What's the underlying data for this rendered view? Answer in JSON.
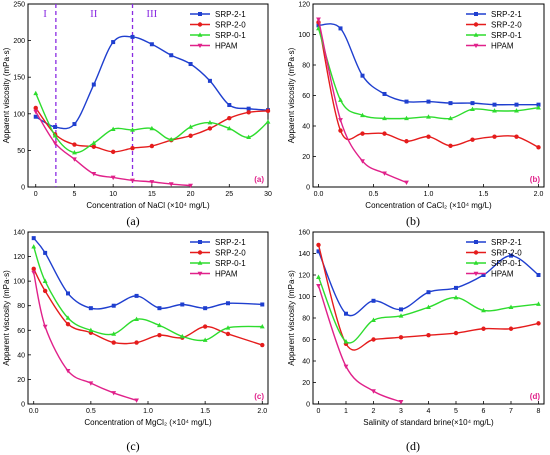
{
  "chart_data": [
    {
      "type": "line",
      "panel_tag": "(a)",
      "caption": "(a)",
      "xlabel": "Concentration of NaCl (×10⁴ mg/L)",
      "ylabel": "Apparent viscosity (mPa·s)",
      "xlim": [
        -1,
        30
      ],
      "ylim": [
        0,
        250
      ],
      "xticks": [
        0,
        5,
        10,
        15,
        20,
        25,
        30
      ],
      "yticks": [
        0,
        50,
        100,
        150,
        200,
        250
      ],
      "legend_position": "top-right",
      "grid": false,
      "region_lines": [
        2.6,
        12.5
      ],
      "regions": [
        {
          "label": "I",
          "x": 1.2
        },
        {
          "label": "II",
          "x": 7.5
        },
        {
          "label": "III",
          "x": 15
        }
      ],
      "series": [
        {
          "name": "SRP-2-1",
          "color": "#1f3fcf",
          "x": [
            0,
            2.5,
            5,
            7.5,
            10,
            12.5,
            15,
            17.5,
            20,
            22.5,
            25,
            27.5,
            30
          ],
          "y": [
            96,
            82,
            86,
            140,
            198,
            205,
            195,
            180,
            168,
            145,
            112,
            107,
            105
          ]
        },
        {
          "name": "SRP-2-0",
          "color": "#e51c1c",
          "x": [
            0,
            2.5,
            5,
            7.5,
            10,
            12.5,
            15,
            17.5,
            20,
            22.5,
            25,
            27.5,
            30
          ],
          "y": [
            108,
            72,
            58,
            55,
            48,
            53,
            56,
            64,
            70,
            80,
            94,
            102,
            104
          ]
        },
        {
          "name": "SRP-0-1",
          "color": "#2edc2e",
          "x": [
            0,
            2.5,
            5,
            7.5,
            10,
            12.5,
            15,
            17.5,
            20,
            22.5,
            25,
            27.5,
            30
          ],
          "y": [
            128,
            70,
            47,
            60,
            79,
            78,
            80,
            65,
            82,
            88,
            80,
            68,
            89
          ]
        },
        {
          "name": "HPAM",
          "color": "#e0218a",
          "x": [
            0,
            2.5,
            5,
            7.5,
            10,
            12.5,
            15,
            17.5,
            20
          ],
          "y": [
            103,
            60,
            38,
            18,
            13,
            9,
            7,
            4,
            2
          ]
        }
      ]
    },
    {
      "type": "line",
      "panel_tag": "(b)",
      "caption": "(b)",
      "xlabel": "Concentration of CaCl₂ (×10⁴ mg/L)",
      "ylabel": "Apparent viscosity (mPa·s)",
      "xlim": [
        -0.05,
        2.05
      ],
      "ylim": [
        0,
        120
      ],
      "xticks": [
        0.0,
        0.5,
        1.0,
        1.5,
        2.0
      ],
      "yticks": [
        0,
        20,
        40,
        60,
        80,
        100,
        120
      ],
      "legend_position": "top-right",
      "grid": false,
      "series": [
        {
          "name": "SRP-2-1",
          "color": "#1f3fcf",
          "x": [
            0,
            0.2,
            0.4,
            0.6,
            0.8,
            1.0,
            1.2,
            1.4,
            1.6,
            1.8,
            2.0
          ],
          "y": [
            106,
            104,
            73,
            61,
            56,
            56,
            55,
            55,
            54,
            54,
            54
          ]
        },
        {
          "name": "SRP-2-0",
          "color": "#e51c1c",
          "x": [
            0,
            0.2,
            0.4,
            0.6,
            0.8,
            1.0,
            1.2,
            1.4,
            1.6,
            1.8,
            2.0
          ],
          "y": [
            108,
            37,
            35,
            35,
            30,
            33,
            27,
            31,
            33,
            33,
            26
          ]
        },
        {
          "name": "SRP-0-1",
          "color": "#2edc2e",
          "x": [
            0,
            0.2,
            0.4,
            0.6,
            0.8,
            1.0,
            1.2,
            1.4,
            1.6,
            1.8,
            2.0
          ],
          "y": [
            104,
            57,
            47,
            45,
            45,
            46,
            45,
            51,
            50,
            50,
            52
          ]
        },
        {
          "name": "HPAM",
          "color": "#e0218a",
          "x": [
            0,
            0.2,
            0.4,
            0.6,
            0.8
          ],
          "y": [
            110,
            44,
            17,
            9,
            3
          ]
        }
      ]
    },
    {
      "type": "line",
      "panel_tag": "(c)",
      "caption": "(c)",
      "xlabel": "Concentration of MgCl₂ (×10⁴ mg/L)",
      "ylabel": "Apparent viscosity (mPa·s)",
      "xlim": [
        -0.05,
        2.05
      ],
      "ylim": [
        0,
        140
      ],
      "xticks": [
        0.0,
        0.5,
        1.0,
        1.5,
        2.0
      ],
      "yticks": [
        0,
        20,
        40,
        60,
        80,
        100,
        120,
        140
      ],
      "legend_position": "top-right",
      "grid": false,
      "series": [
        {
          "name": "SRP-2-1",
          "color": "#1f3fcf",
          "x": [
            0,
            0.1,
            0.3,
            0.5,
            0.7,
            0.9,
            1.1,
            1.3,
            1.5,
            1.7,
            2.0
          ],
          "y": [
            135,
            123,
            90,
            78,
            80,
            88,
            78,
            81,
            78,
            82,
            81
          ]
        },
        {
          "name": "SRP-2-0",
          "color": "#e51c1c",
          "x": [
            0,
            0.1,
            0.3,
            0.5,
            0.7,
            0.9,
            1.1,
            1.3,
            1.5,
            1.7,
            2.0
          ],
          "y": [
            110,
            92,
            65,
            58,
            50,
            50,
            56,
            54,
            63,
            57,
            48
          ]
        },
        {
          "name": "SRP-0-1",
          "color": "#2edc2e",
          "x": [
            0,
            0.1,
            0.3,
            0.5,
            0.7,
            0.9,
            1.1,
            1.3,
            1.5,
            1.7,
            2.0
          ],
          "y": [
            128,
            100,
            70,
            60,
            57,
            69,
            64,
            55,
            52,
            62,
            63
          ]
        },
        {
          "name": "HPAM",
          "color": "#e0218a",
          "x": [
            0,
            0.1,
            0.3,
            0.5,
            0.7,
            0.9
          ],
          "y": [
            107,
            63,
            27,
            17,
            9,
            3
          ]
        }
      ]
    },
    {
      "type": "line",
      "panel_tag": "(d)",
      "caption": "(d)",
      "xlabel": "Salinity of standard brine(×10⁴ mg/L)",
      "ylabel": "Apparent viscosity (mPa·s)",
      "xlim": [
        -0.2,
        8.2
      ],
      "ylim": [
        0,
        160
      ],
      "xticks": [
        0,
        1,
        2,
        3,
        4,
        5,
        6,
        7,
        8
      ],
      "yticks": [
        0,
        20,
        40,
        60,
        80,
        100,
        120,
        140,
        160
      ],
      "legend_position": "top-right",
      "grid": false,
      "series": [
        {
          "name": "SRP-2-1",
          "color": "#1f3fcf",
          "x": [
            0,
            1,
            2,
            3,
            4,
            5,
            6,
            7,
            8
          ],
          "y": [
            142,
            84,
            96,
            88,
            104,
            108,
            120,
            138,
            120
          ]
        },
        {
          "name": "SRP-2-0",
          "color": "#e51c1c",
          "x": [
            0,
            1,
            2,
            3,
            4,
            5,
            6,
            7,
            8
          ],
          "y": [
            148,
            56,
            60,
            62,
            64,
            66,
            70,
            70,
            75
          ]
        },
        {
          "name": "SRP-0-1",
          "color": "#2edc2e",
          "x": [
            0,
            1,
            2,
            3,
            4,
            5,
            6,
            7,
            8
          ],
          "y": [
            118,
            58,
            78,
            82,
            90,
            99,
            87,
            90,
            93
          ]
        },
        {
          "name": "HPAM",
          "color": "#e0218a",
          "x": [
            0,
            1,
            2,
            3
          ],
          "y": [
            110,
            35,
            12,
            2
          ]
        }
      ]
    }
  ]
}
